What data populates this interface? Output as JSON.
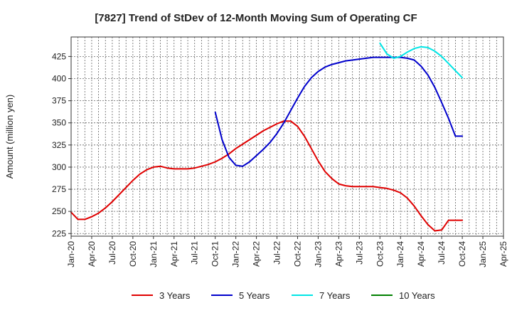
{
  "chart_data": {
    "type": "line",
    "title": "[7827]  Trend of StDev of 12-Month Moving Sum of Operating CF",
    "xlabel": "",
    "ylabel": "Amount (million yen)",
    "ylim": [
      222,
      447
    ],
    "yticks": [
      225,
      250,
      275,
      300,
      325,
      350,
      375,
      400,
      425
    ],
    "x_tick_labels": [
      "Jan-20",
      "Apr-20",
      "Jul-20",
      "Oct-20",
      "Jan-21",
      "Apr-21",
      "Jul-21",
      "Oct-21",
      "Jan-22",
      "Apr-22",
      "Jul-22",
      "Oct-22",
      "Jan-23",
      "Apr-23",
      "Jul-23",
      "Oct-23",
      "Jan-24",
      "Apr-24",
      "Jul-24",
      "Oct-24",
      "Jan-25",
      "Apr-25"
    ],
    "legend_position": "bottom",
    "grid": true,
    "series": [
      {
        "name": "3 Years",
        "color": "#e00000",
        "x": [
          "Jan-20",
          "Feb-20",
          "Mar-20",
          "Apr-20",
          "May-20",
          "Jun-20",
          "Jul-20",
          "Aug-20",
          "Sep-20",
          "Oct-20",
          "Nov-20",
          "Dec-20",
          "Jan-21",
          "Feb-21",
          "Mar-21",
          "Apr-21",
          "May-21",
          "Jun-21",
          "Jul-21",
          "Aug-21",
          "Sep-21",
          "Oct-21",
          "Nov-21",
          "Dec-21",
          "Jan-22",
          "Feb-22",
          "Mar-22",
          "Apr-22",
          "May-22",
          "Jun-22",
          "Jul-22",
          "Aug-22",
          "Sep-22",
          "Oct-22",
          "Nov-22",
          "Dec-22",
          "Jan-23",
          "Feb-23",
          "Mar-23",
          "Apr-23",
          "May-23",
          "Jun-23",
          "Jul-23",
          "Aug-23",
          "Sep-23",
          "Oct-23",
          "Nov-23",
          "Dec-23",
          "Jan-24",
          "Feb-24",
          "Mar-24",
          "Apr-24",
          "May-24",
          "Jun-24",
          "Jul-24",
          "Aug-24",
          "Sep-24",
          "Oct-24"
        ],
        "values": [
          249,
          241,
          241,
          244,
          248,
          254,
          261,
          269,
          277,
          285,
          292,
          297,
          300,
          301,
          299,
          298,
          298,
          298,
          299,
          301,
          303,
          306,
          310,
          315,
          321,
          326,
          331,
          336,
          341,
          345,
          349,
          352,
          352,
          346,
          335,
          321,
          307,
          295,
          287,
          281,
          279,
          278,
          278,
          278,
          278,
          277,
          276,
          274,
          271,
          265,
          256,
          245,
          235,
          228,
          229,
          240,
          240,
          240
        ]
      },
      {
        "name": "5 Years",
        "color": "#0000cc",
        "x": [
          "Oct-21",
          "Nov-21",
          "Dec-21",
          "Jan-22",
          "Feb-22",
          "Mar-22",
          "Apr-22",
          "May-22",
          "Jun-22",
          "Jul-22",
          "Aug-22",
          "Sep-22",
          "Oct-22",
          "Nov-22",
          "Dec-22",
          "Jan-23",
          "Feb-23",
          "Mar-23",
          "Apr-23",
          "May-23",
          "Jun-23",
          "Jul-23",
          "Aug-23",
          "Sep-23",
          "Oct-23",
          "Nov-23",
          "Dec-23",
          "Jan-24",
          "Feb-24",
          "Mar-24",
          "Apr-24",
          "May-24",
          "Jun-24",
          "Jul-24",
          "Aug-24",
          "Sep-24",
          "Oct-24"
        ],
        "values": [
          362,
          331,
          311,
          302,
          301,
          306,
          313,
          320,
          328,
          338,
          350,
          364,
          378,
          391,
          401,
          408,
          413,
          416,
          418,
          420,
          421,
          422,
          423,
          424,
          424,
          424,
          424,
          424,
          423,
          421,
          414,
          404,
          390,
          373,
          355,
          335,
          335
        ]
      },
      {
        "name": "7 Years",
        "color": "#00e5e5",
        "x": [
          "Oct-23",
          "Nov-23",
          "Dec-23",
          "Jan-24",
          "Feb-24",
          "Mar-24",
          "Apr-24",
          "May-24",
          "Jun-24",
          "Jul-24",
          "Aug-24",
          "Sep-24",
          "Oct-24"
        ],
        "values": [
          440,
          428,
          423,
          425,
          430,
          434,
          436,
          435,
          431,
          425,
          417,
          409,
          401
        ]
      },
      {
        "name": "10 Years",
        "color": "#008000",
        "x": [],
        "values": []
      }
    ]
  }
}
